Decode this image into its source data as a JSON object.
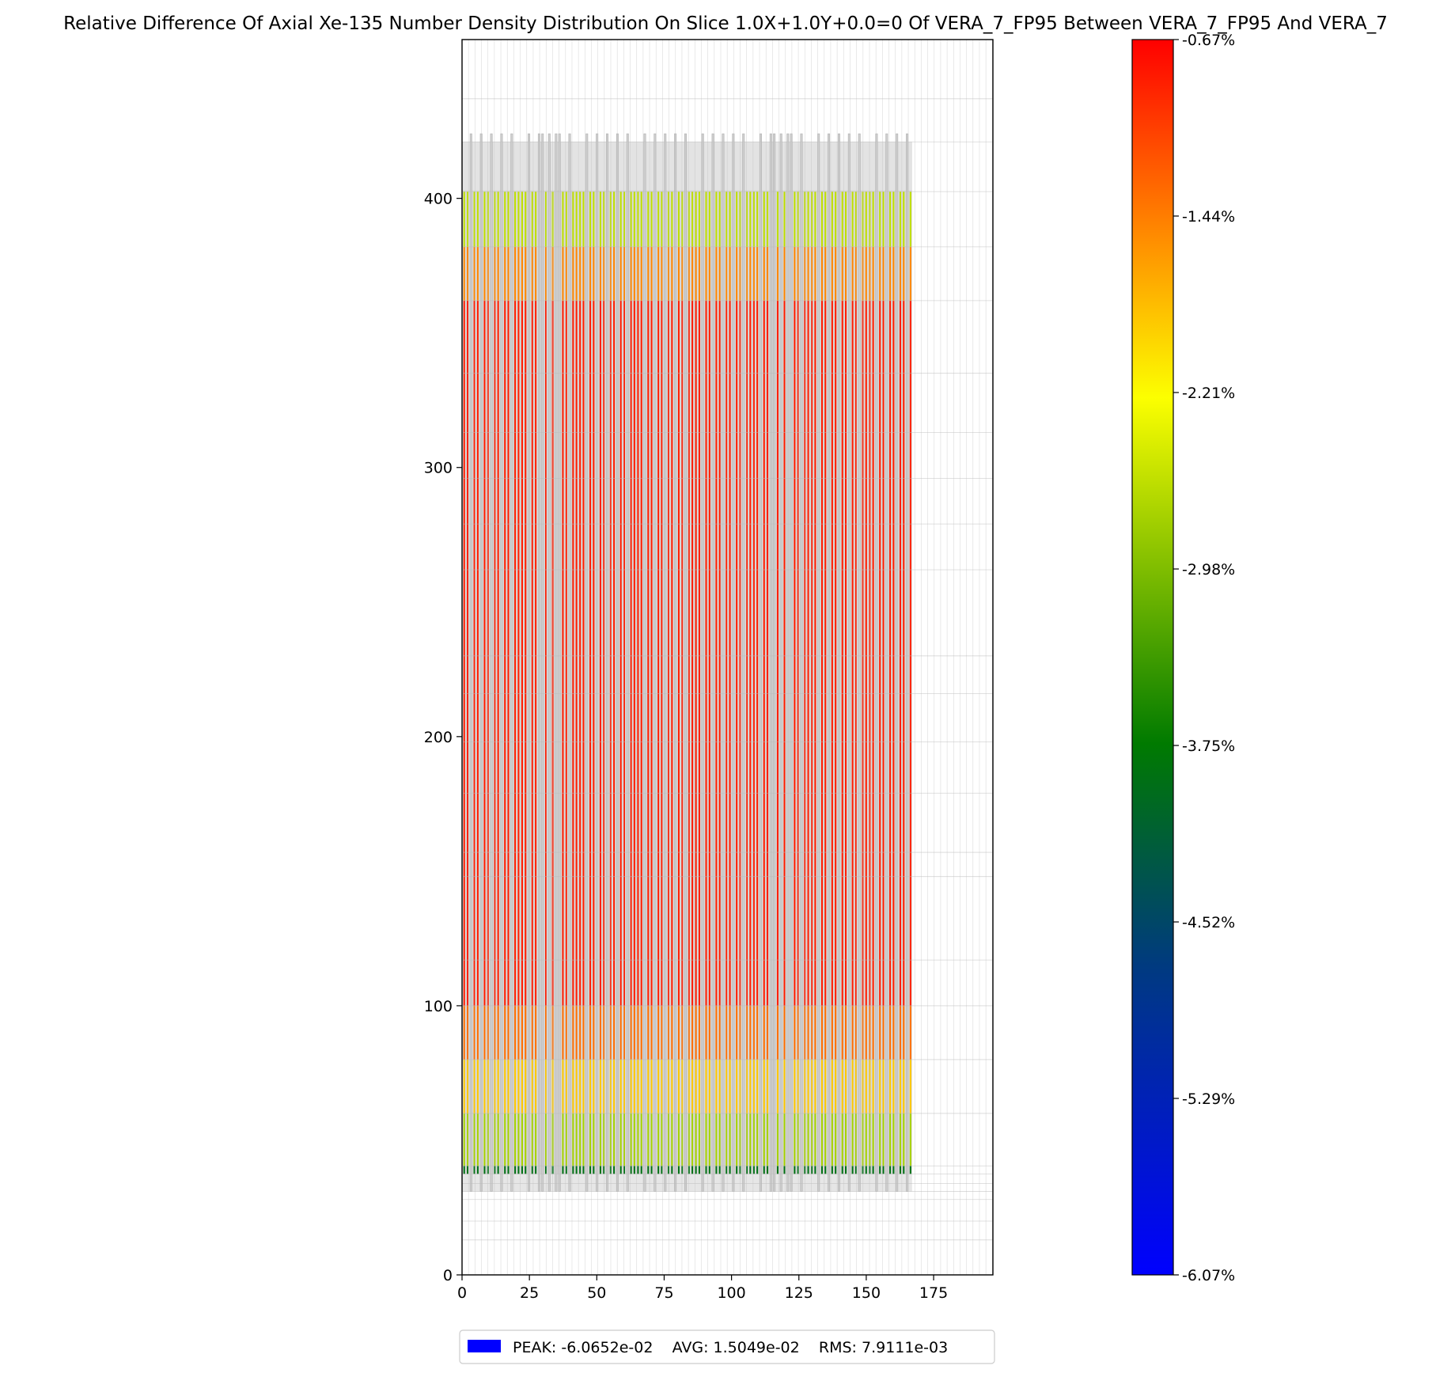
{
  "chart_data": {
    "type": "heatmap",
    "title": "Relative Difference Of Axial Xe-135 Number Density Distribution On Slice 1.0X+1.0Y+0.0=0 Of VERA_7_FP95 Between VERA_7_FP95 And VERA_7",
    "xlabel": "",
    "ylabel": "",
    "xlim": [
      0,
      197
    ],
    "ylim": [
      0,
      459
    ],
    "x_ticks": [
      0,
      25,
      50,
      75,
      100,
      125,
      150,
      175
    ],
    "y_ticks": [
      0,
      100,
      200,
      300,
      400
    ],
    "grid": true,
    "core_x_extent": [
      0,
      167
    ],
    "fuel_z_extent": [
      37.5,
      402.5
    ],
    "axial_zones": [
      {
        "z0": 37.5,
        "z1": 40.5,
        "value_pct": -3.9
      },
      {
        "z0": 40.5,
        "z1": 60,
        "value_pct": -2.75
      },
      {
        "z0": 60,
        "z1": 80,
        "value_pct": -1.9
      },
      {
        "z0": 80,
        "z1": 100,
        "value_pct": -1.35
      },
      {
        "z0": 100,
        "z1": 362,
        "value_pct": -0.85
      },
      {
        "z0": 362,
        "z1": 382,
        "value_pct": -1.5
      },
      {
        "z0": 382,
        "z1": 402.5,
        "value_pct": -2.6
      }
    ],
    "colorbar": {
      "min_pct": -6.07,
      "max_pct": -0.67,
      "tick_labels": [
        "-0.67%",
        "-1.44%",
        "-2.21%",
        "-2.98%",
        "-3.75%",
        "-4.52%",
        "-5.29%",
        "-6.07%"
      ],
      "colors": [
        "#0000ff",
        "#003a80",
        "#007a00",
        "#fcff00",
        "#ff8c00",
        "#ff0000"
      ]
    },
    "legend": {
      "position": "bottom-center",
      "text": "PEAK: -6.0652e-02    AVG: 1.5049e-02    RMS: 7.9111e-03",
      "swatch_color": "#0000ff"
    }
  }
}
